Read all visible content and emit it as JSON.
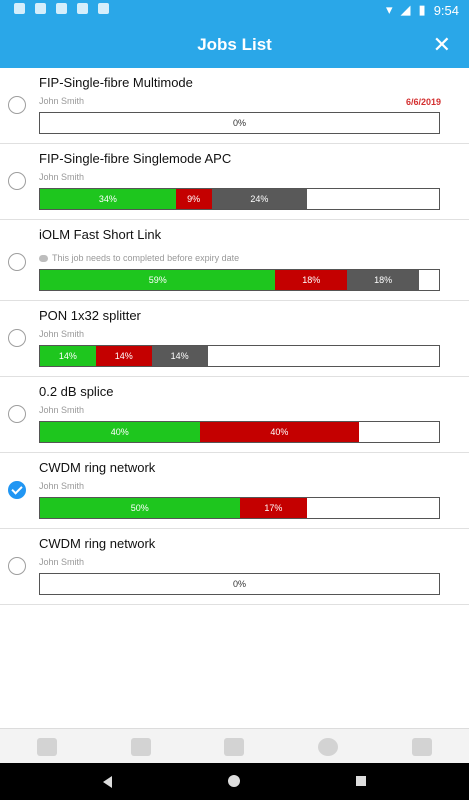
{
  "status": {
    "time": "9:54"
  },
  "appbar": {
    "title": "Jobs List",
    "close_icon": "close-icon"
  },
  "jobs": [
    {
      "name": "FIP-Single-fibre Multimode",
      "owner": "John Smith",
      "date": "6/6/2019",
      "checked": false,
      "empty_label": "0%",
      "segments": []
    },
    {
      "name": "FIP-Single-fibre Singlemode APC",
      "owner": "John Smith",
      "checked": false,
      "segments": [
        {
          "label": "34%",
          "value": 34,
          "color": "green"
        },
        {
          "label": "9%",
          "value": 9,
          "color": "red"
        },
        {
          "label": "24%",
          "value": 24,
          "color": "grey"
        }
      ]
    },
    {
      "name": "iOLM Fast Short Link",
      "note": "This job needs to completed before expiry date",
      "checked": false,
      "segments": [
        {
          "label": "59%",
          "value": 59,
          "color": "green"
        },
        {
          "label": "18%",
          "value": 18,
          "color": "red"
        },
        {
          "label": "18%",
          "value": 18,
          "color": "grey"
        }
      ]
    },
    {
      "name": "PON 1x32 splitter",
      "owner": "John Smith",
      "checked": false,
      "segments": [
        {
          "label": "14%",
          "value": 14,
          "color": "green"
        },
        {
          "label": "14%",
          "value": 14,
          "color": "red"
        },
        {
          "label": "14%",
          "value": 14,
          "color": "grey"
        }
      ]
    },
    {
      "name": "0.2 dB splice",
      "owner": "John Smith",
      "checked": false,
      "segments": [
        {
          "label": "40%",
          "value": 40,
          "color": "green"
        },
        {
          "label": "40%",
          "value": 40,
          "color": "red"
        }
      ]
    },
    {
      "name": "CWDM ring network",
      "owner": "John Smith",
      "checked": true,
      "segments": [
        {
          "label": "50%",
          "value": 50,
          "color": "green"
        },
        {
          "label": "17%",
          "value": 17,
          "color": "red"
        }
      ]
    },
    {
      "name": "CWDM ring network",
      "owner": "John Smith",
      "checked": false,
      "empty_label": "0%",
      "segments": []
    }
  ],
  "bottom_nav": [
    {
      "icon": "add-comment-icon"
    },
    {
      "icon": "add-person-icon"
    },
    {
      "icon": "add-library-icon"
    },
    {
      "icon": "info-icon"
    },
    {
      "icon": "trash-icon"
    }
  ]
}
